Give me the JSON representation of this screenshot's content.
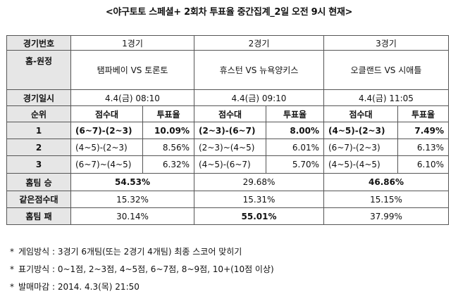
{
  "title": "<야구토토 스페셜+ 2회차 투표율 중간집계_2일 오전 9시 현재>",
  "table": {
    "row_labels": {
      "game_no": "경기번호",
      "home_away": "홈-원정",
      "date": "경기일시",
      "rank": "순위",
      "home_win": "홈팀 승",
      "same_score": "같은점수대",
      "home_lose": "홈팀 패"
    },
    "sub_headers": {
      "score": "점수대",
      "rate": "투표율"
    },
    "games": [
      {
        "number": "1경기",
        "matchup": "탬파베이 VS 토론토",
        "datetime": "4.4(금) 08:10",
        "ranks": [
          {
            "rank": "1",
            "score": "(6~7)-(2~3)",
            "rate": "10.09%"
          },
          {
            "rank": "2",
            "score": "(4~5)-(2~3)",
            "rate": "8.56%"
          },
          {
            "rank": "3",
            "score": "(6~7)~(4~5)",
            "rate": "6.32%"
          }
        ],
        "home_win": "54.53%",
        "same_score": "15.32%",
        "home_lose": "30.14%"
      },
      {
        "number": "2경기",
        "matchup": "휴스턴 VS 뉴욕양키스",
        "datetime": "4.4(금) 09:10",
        "ranks": [
          {
            "rank": "1",
            "score": "(2~3)-(6~7)",
            "rate": "8.00%"
          },
          {
            "rank": "2",
            "score": "(2~3)~(4~5)",
            "rate": "6.01%"
          },
          {
            "rank": "3",
            "score": "(4~5)-(6~7)",
            "rate": "5.70%"
          }
        ],
        "home_win": "29.68%",
        "same_score": "15.31%",
        "home_lose": "55.01%"
      },
      {
        "number": "3경기",
        "matchup": "오클랜드 VS 시애틀",
        "datetime": "4.4(금) 11:05",
        "ranks": [
          {
            "rank": "1",
            "score": "(4~5)-(2~3)",
            "rate": "7.49%"
          },
          {
            "rank": "2",
            "score": "(6~7)-(2~3)",
            "rate": "6.13%"
          },
          {
            "rank": "3",
            "score": "(4~5)-(4~5)",
            "rate": "6.10%"
          }
        ],
        "home_win": "46.86%",
        "same_score": "15.15%",
        "home_lose": "37.99%"
      }
    ]
  },
  "notes": [
    {
      "marker": "*",
      "text": "게임방식 : 3경기 6개팀(또는 2경기 4개팀) 최종 스코어 맞히기"
    },
    {
      "marker": "*",
      "text": "표기방식 : 0~1점, 2~3점, 4~5점, 6~7점, 8~9점, 10+(10점 이상)"
    },
    {
      "marker": "*",
      "text": "발매마감 : 2014. 4.3(목) 21:50"
    }
  ]
}
